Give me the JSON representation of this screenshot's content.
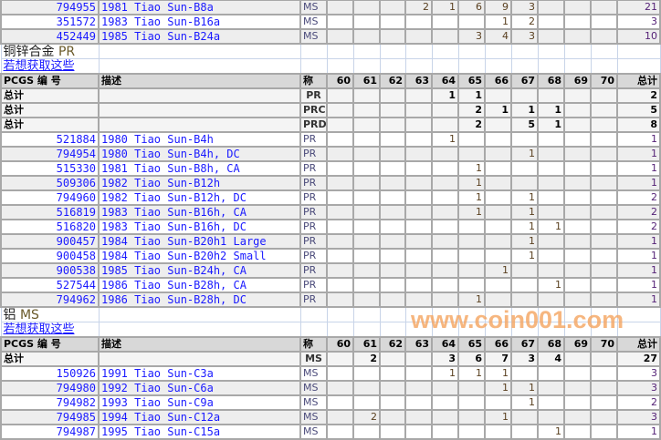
{
  "grade_columns": [
    "60",
    "61",
    "62",
    "63",
    "64",
    "65",
    "66",
    "67",
    "68",
    "69",
    "70"
  ],
  "header": {
    "pcgs": "PCGS 编 号",
    "desc": "描述",
    "grade": "称",
    "total": "总计"
  },
  "total_label": "总计",
  "link_text": "若想获取这些",
  "top_rows": [
    {
      "id": "794955",
      "desc": "1981 Tiao Sun-B8a",
      "grade": "MS",
      "counts": [
        "",
        "",
        "",
        "2",
        "1",
        "6",
        "9",
        "3",
        "",
        "",
        ""
      ],
      "total": "21"
    },
    {
      "id": "351572",
      "desc": "1983 Tiao Sun-B16a",
      "grade": "MS",
      "counts": [
        "",
        "",
        "",
        "",
        "",
        "",
        "1",
        "2",
        "",
        "",
        ""
      ],
      "total": "3"
    },
    {
      "id": "452449",
      "desc": "1985 Tiao Sun-B24a",
      "grade": "MS",
      "counts": [
        "",
        "",
        "",
        "",
        "",
        "3",
        "4",
        "3",
        "",
        "",
        ""
      ],
      "total": "10"
    }
  ],
  "sections": [
    {
      "title": "铜锌合金",
      "designation": "PR",
      "totals": [
        {
          "grade": "PR",
          "counts": [
            "",
            "",
            "",
            "",
            "1",
            "1",
            "",
            "",
            "",
            "",
            ""
          ],
          "total": "2"
        },
        {
          "grade": "PRC",
          "counts": [
            "",
            "",
            "",
            "",
            "",
            "2",
            "1",
            "1",
            "1",
            "",
            ""
          ],
          "total": "5"
        },
        {
          "grade": "PRD",
          "counts": [
            "",
            "",
            "",
            "",
            "",
            "2",
            "",
            "5",
            "1",
            "",
            ""
          ],
          "total": "8"
        }
      ],
      "rows": [
        {
          "id": "521884",
          "desc": "1980 Tiao Sun-B4h",
          "grade": "PR",
          "counts": [
            "",
            "",
            "",
            "",
            "1",
            "",
            "",
            "",
            "",
            "",
            ""
          ],
          "total": "1"
        },
        {
          "id": "794954",
          "desc": "1980 Tiao Sun-B4h, DC",
          "grade": "PR",
          "counts": [
            "",
            "",
            "",
            "",
            "",
            "",
            "",
            "1",
            "",
            "",
            ""
          ],
          "total": "1"
        },
        {
          "id": "515330",
          "desc": "1981 Tiao Sun-B8h, CA",
          "grade": "PR",
          "counts": [
            "",
            "",
            "",
            "",
            "",
            "1",
            "",
            "",
            "",
            "",
            ""
          ],
          "total": "1"
        },
        {
          "id": "509306",
          "desc": "1982 Tiao Sun-B12h",
          "grade": "PR",
          "counts": [
            "",
            "",
            "",
            "",
            "",
            "1",
            "",
            "",
            "",
            "",
            ""
          ],
          "total": "1"
        },
        {
          "id": "794960",
          "desc": "1982 Tiao Sun-B12h, DC",
          "grade": "PR",
          "counts": [
            "",
            "",
            "",
            "",
            "",
            "1",
            "",
            "1",
            "",
            "",
            ""
          ],
          "total": "2"
        },
        {
          "id": "516819",
          "desc": "1983 Tiao Sun-B16h, CA",
          "grade": "PR",
          "counts": [
            "",
            "",
            "",
            "",
            "",
            "1",
            "",
            "1",
            "",
            "",
            ""
          ],
          "total": "2"
        },
        {
          "id": "516820",
          "desc": "1983 Tiao Sun-B16h, DC",
          "grade": "PR",
          "counts": [
            "",
            "",
            "",
            "",
            "",
            "",
            "",
            "1",
            "1",
            "",
            ""
          ],
          "total": "2"
        },
        {
          "id": "900457",
          "desc": "1984 Tiao Sun-B20h1 Large",
          "grade": "PR",
          "counts": [
            "",
            "",
            "",
            "",
            "",
            "",
            "",
            "1",
            "",
            "",
            ""
          ],
          "total": "1"
        },
        {
          "id": "900458",
          "desc": "1984 Tiao Sun-B20h2 Small",
          "grade": "PR",
          "counts": [
            "",
            "",
            "",
            "",
            "",
            "",
            "",
            "1",
            "",
            "",
            ""
          ],
          "total": "1"
        },
        {
          "id": "900538",
          "desc": "1985 Tiao Sun-B24h, CA",
          "grade": "PR",
          "counts": [
            "",
            "",
            "",
            "",
            "",
            "",
            "1",
            "",
            "",
            "",
            ""
          ],
          "total": "1"
        },
        {
          "id": "527544",
          "desc": "1986 Tiao Sun-B28h, CA",
          "grade": "PR",
          "counts": [
            "",
            "",
            "",
            "",
            "",
            "",
            "",
            "",
            "1",
            "",
            ""
          ],
          "total": "1"
        },
        {
          "id": "794962",
          "desc": "1986 Tiao Sun-B28h, DC",
          "grade": "PR",
          "counts": [
            "",
            "",
            "",
            "",
            "",
            "1",
            "",
            "",
            "",
            "",
            ""
          ],
          "total": "1"
        }
      ]
    },
    {
      "title": "铝",
      "designation": "MS",
      "totals": [
        {
          "grade": "MS",
          "counts": [
            "",
            "2",
            "",
            "",
            "3",
            "6",
            "7",
            "3",
            "4",
            "",
            ""
          ],
          "total": "27"
        }
      ],
      "rows": [
        {
          "id": "150926",
          "desc": "1991 Tiao Sun-C3a",
          "grade": "MS",
          "counts": [
            "",
            "",
            "",
            "",
            "1",
            "1",
            "1",
            "",
            "",
            "",
            ""
          ],
          "total": "3"
        },
        {
          "id": "794980",
          "desc": "1992 Tiao Sun-C6a",
          "grade": "MS",
          "counts": [
            "",
            "",
            "",
            "",
            "",
            "",
            "1",
            "1",
            "",
            "",
            ""
          ],
          "total": "3"
        },
        {
          "id": "794982",
          "desc": "1993 Tiao Sun-C9a",
          "grade": "MS",
          "counts": [
            "",
            "",
            "",
            "",
            "",
            "",
            "",
            "1",
            "",
            "",
            ""
          ],
          "total": "2"
        },
        {
          "id": "794985",
          "desc": "1994 Tiao Sun-C12a",
          "grade": "MS",
          "counts": [
            "",
            "2",
            "",
            "",
            "",
            "",
            "1",
            "",
            "",
            "",
            ""
          ],
          "total": "3"
        },
        {
          "id": "794987",
          "desc": "1995 Tiao Sun-C15a",
          "grade": "MS",
          "counts": [
            "",
            "",
            "",
            "",
            "",
            "",
            "",
            "",
            "1",
            "",
            ""
          ],
          "total": "1"
        }
      ]
    }
  ],
  "watermark": "www.coin001.com"
}
